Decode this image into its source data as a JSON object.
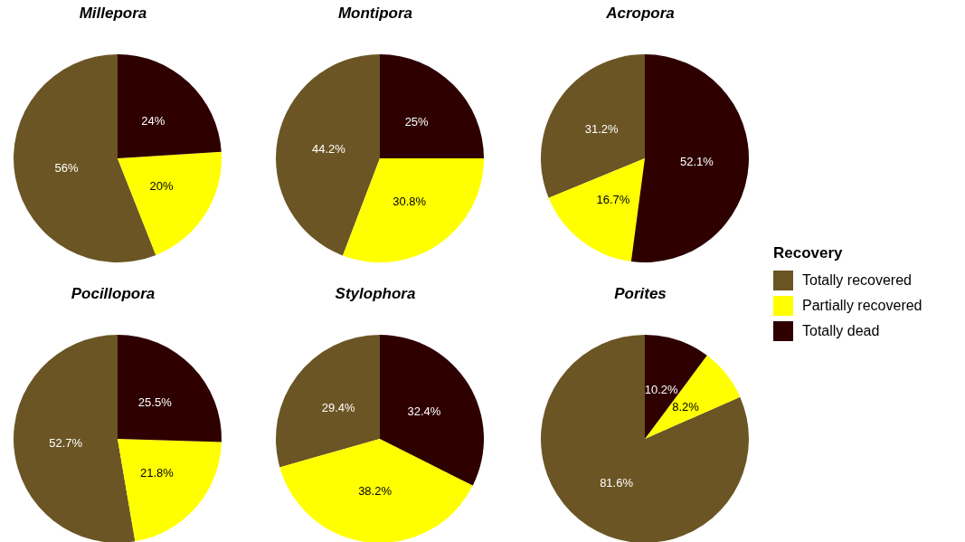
{
  "chart_data": [
    {
      "type": "pie",
      "title": "Millepora",
      "categories": [
        null,
        null,
        null
      ],
      "values": [
        56,
        20,
        24
      ],
      "value_labels": [
        "56%",
        "20%",
        "24%"
      ],
      "colors": [
        "#6b5524",
        "#ffff00",
        "#2e0000"
      ],
      "legend": false
    },
    {
      "type": "pie",
      "title": "Montipora",
      "categories": [
        null,
        null,
        null
      ],
      "values": [
        44.2,
        30.8,
        25
      ],
      "value_labels": [
        "44.2%",
        "30.8%",
        "25%"
      ],
      "colors": [
        "#6b5524",
        "#ffff00",
        "#2e0000"
      ],
      "legend": false
    },
    {
      "type": "pie",
      "title": "Acropora",
      "categories": [
        "Totally recovered",
        "Partially recovered",
        "Totally dead"
      ],
      "values": [
        31.2,
        16.7,
        52.1
      ],
      "value_labels": [
        "31.2%",
        "16.7%",
        "52.1%"
      ],
      "colors": [
        "#6b5524",
        "#ffff00",
        "#2e0000"
      ],
      "legend": "right",
      "legend_title": "Recovery"
    },
    {
      "type": "pie",
      "title": "Pocillopora",
      "categories": [
        null,
        null,
        null
      ],
      "values": [
        52.7,
        21.8,
        25.5
      ],
      "value_labels": [
        "52.7%",
        "21.8%",
        "25.5%"
      ],
      "colors": [
        "#6b5524",
        "#ffff00",
        "#2e0000"
      ],
      "legend": false
    },
    {
      "type": "pie",
      "title": "Stylophora",
      "categories": [
        null,
        null,
        null
      ],
      "values": [
        29.4,
        38.2,
        32.4
      ],
      "value_labels": [
        "29.4%",
        "38.2%",
        "32.4%"
      ],
      "colors": [
        "#6b5524",
        "#ffff00",
        "#2e0000"
      ],
      "legend": false
    },
    {
      "type": "pie",
      "title": "Porites",
      "categories": [
        null,
        null,
        null
      ],
      "values": [
        81.6,
        8.2,
        10.2
      ],
      "value_labels": [
        "81.6%",
        "8.2%",
        "10.2%"
      ],
      "colors": [
        "#6b5524",
        "#ffff00",
        "#2e0000"
      ],
      "legend": false
    }
  ]
}
